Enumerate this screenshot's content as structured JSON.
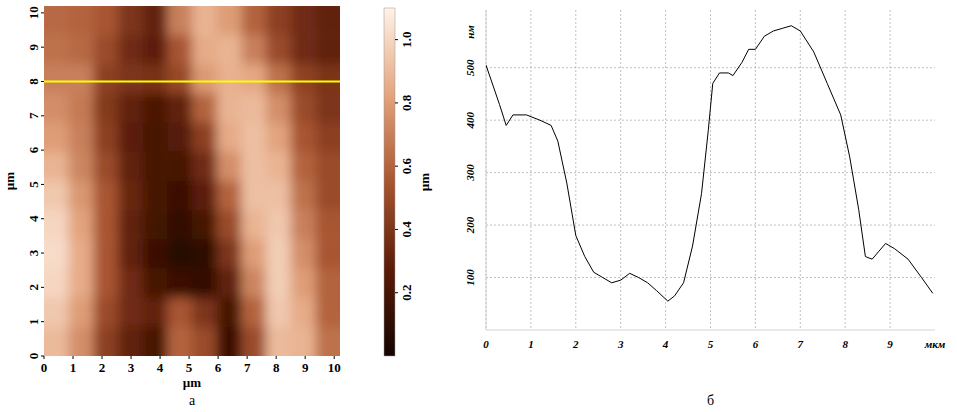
{
  "chart_data": [
    {
      "type": "heatmap",
      "panel_label": "а",
      "x_label": "µm",
      "y_label": "µm",
      "xlim": [
        0,
        10.2
      ],
      "ylim": [
        0,
        10.2
      ],
      "xticks": [
        0,
        1,
        2,
        3,
        4,
        5,
        6,
        7,
        8,
        9,
        10
      ],
      "yticks": [
        0,
        1,
        2,
        3,
        4,
        5,
        6,
        7,
        8,
        9,
        10
      ],
      "values": [
        [
          0.62,
          0.6,
          0.55,
          0.4,
          0.3,
          0.7,
          0.88,
          0.8,
          0.6,
          0.45,
          0.35,
          0.3
        ],
        [
          0.65,
          0.62,
          0.5,
          0.35,
          0.28,
          0.55,
          0.85,
          0.88,
          0.7,
          0.5,
          0.35,
          0.3
        ],
        [
          0.7,
          0.7,
          0.45,
          0.4,
          0.38,
          0.49,
          0.79,
          0.87,
          0.84,
          0.65,
          0.46,
          0.39
        ],
        [
          0.75,
          0.68,
          0.42,
          0.3,
          0.22,
          0.3,
          0.6,
          0.88,
          0.9,
          0.75,
          0.5,
          0.4
        ],
        [
          0.8,
          0.7,
          0.45,
          0.28,
          0.2,
          0.25,
          0.45,
          0.85,
          0.92,
          0.82,
          0.55,
          0.45
        ],
        [
          0.88,
          0.72,
          0.5,
          0.3,
          0.2,
          0.2,
          0.35,
          0.75,
          0.92,
          0.88,
          0.6,
          0.5
        ],
        [
          0.95,
          0.78,
          0.55,
          0.32,
          0.2,
          0.15,
          0.28,
          0.6,
          0.92,
          0.92,
          0.65,
          0.5
        ],
        [
          1.0,
          0.82,
          0.55,
          0.3,
          0.18,
          0.12,
          0.2,
          0.5,
          0.88,
          0.95,
          0.7,
          0.55
        ],
        [
          1.02,
          0.85,
          0.55,
          0.3,
          0.15,
          0.08,
          0.1,
          0.4,
          0.8,
          0.97,
          0.75,
          0.55
        ],
        [
          1.0,
          0.85,
          0.55,
          0.35,
          0.2,
          0.15,
          0.12,
          0.3,
          0.72,
          0.97,
          0.8,
          0.6
        ],
        [
          0.95,
          0.8,
          0.5,
          0.35,
          0.3,
          0.55,
          0.4,
          0.2,
          0.6,
          0.95,
          0.85,
          0.6
        ],
        [
          0.9,
          0.75,
          0.45,
          0.3,
          0.2,
          0.6,
          0.5,
          0.15,
          0.5,
          0.9,
          0.88,
          0.65
        ]
      ],
      "colorbar_range": [
        0,
        1.1
      ],
      "colorbar_ticks": [
        {
          "value": 0.2,
          "label": "0.2"
        },
        {
          "value": 0.4,
          "label": "0.4"
        },
        {
          "value": 0.6,
          "label": "0.6"
        },
        {
          "value": 0.8,
          "label": "0.8"
        },
        {
          "value": 1,
          "label": "1.0"
        }
      ],
      "colorbar_label": "µm",
      "profile_line": {
        "y": 8,
        "color": "#ffff00"
      }
    },
    {
      "type": "line",
      "panel_label": "б",
      "x_label": "мкм",
      "y_label": "нм",
      "xlim": [
        0,
        10
      ],
      "ylim": [
        0,
        610
      ],
      "xticks": [
        0,
        1,
        2,
        3,
        4,
        5,
        6,
        7,
        8,
        9
      ],
      "yticks": [
        100,
        200,
        300,
        400,
        500
      ],
      "grid": true,
      "color": "#000000",
      "x": [
        0,
        0.3,
        0.45,
        0.6,
        0.9,
        1.2,
        1.45,
        1.6,
        1.8,
        2.0,
        2.2,
        2.4,
        2.6,
        2.8,
        3.0,
        3.2,
        3.4,
        3.6,
        3.8,
        4.05,
        4.2,
        4.4,
        4.6,
        4.8,
        4.95,
        5.05,
        5.2,
        5.4,
        5.5,
        5.7,
        5.85,
        6.0,
        6.2,
        6.4,
        6.6,
        6.8,
        7.0,
        7.3,
        7.6,
        7.9,
        8.1,
        8.3,
        8.45,
        8.6,
        8.75,
        8.9,
        9.1,
        9.4,
        9.7,
        9.95
      ],
      "values": [
        505,
        430,
        390,
        410,
        410,
        400,
        390,
        360,
        280,
        180,
        140,
        110,
        100,
        90,
        95,
        108,
        100,
        90,
        75,
        55,
        65,
        90,
        160,
        260,
        380,
        470,
        490,
        490,
        485,
        510,
        535,
        535,
        560,
        570,
        575,
        580,
        570,
        530,
        470,
        410,
        330,
        230,
        140,
        135,
        150,
        165,
        155,
        135,
        100,
        70
      ]
    }
  ]
}
